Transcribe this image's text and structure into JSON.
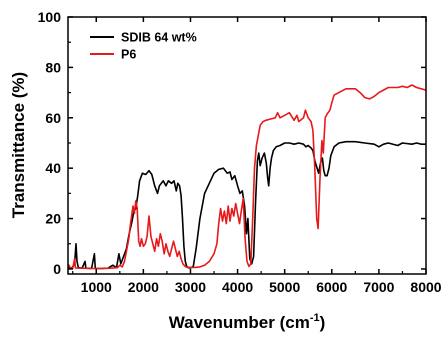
{
  "chart_data": {
    "type": "line",
    "title": "",
    "xlabel": "Wavenumber (cm",
    "xlabel_sup": "-1",
    "xlabel_close": ")",
    "ylabel": "Transmittance (%)",
    "xlim": [
      400,
      8000
    ],
    "ylim": [
      -2,
      100
    ],
    "xticks": [
      1000,
      2000,
      3000,
      4000,
      5000,
      6000,
      7000,
      8000
    ],
    "yticks": [
      0,
      20,
      40,
      60,
      80,
      100
    ],
    "grid": false,
    "legend_position": "top-left",
    "series": [
      {
        "name": "SDIB 64 wt%",
        "color": "#000000",
        "points": [
          [
            400,
            0.5
          ],
          [
            480,
            0.3
          ],
          [
            540,
            2
          ],
          [
            570,
            10
          ],
          [
            590,
            3
          ],
          [
            620,
            0.5
          ],
          [
            700,
            0.3
          ],
          [
            760,
            3
          ],
          [
            780,
            0.3
          ],
          [
            900,
            0.2
          ],
          [
            960,
            6
          ],
          [
            980,
            0.2
          ],
          [
            1100,
            0.2
          ],
          [
            1250,
            0.3
          ],
          [
            1350,
            1.5
          ],
          [
            1430,
            0.5
          ],
          [
            1480,
            6
          ],
          [
            1520,
            2
          ],
          [
            1580,
            5
          ],
          [
            1640,
            8
          ],
          [
            1700,
            14
          ],
          [
            1760,
            19
          ],
          [
            1800,
            23
          ],
          [
            1840,
            24
          ],
          [
            1880,
            29
          ],
          [
            1920,
            35
          ],
          [
            1980,
            38
          ],
          [
            2050,
            37.5
          ],
          [
            2120,
            39
          ],
          [
            2180,
            37.5
          ],
          [
            2240,
            33
          ],
          [
            2300,
            30
          ],
          [
            2340,
            33
          ],
          [
            2420,
            35
          ],
          [
            2480,
            33
          ],
          [
            2530,
            35
          ],
          [
            2600,
            34
          ],
          [
            2650,
            35
          ],
          [
            2700,
            31
          ],
          [
            2730,
            34
          ],
          [
            2770,
            33
          ],
          [
            2800,
            29
          ],
          [
            2830,
            20
          ],
          [
            2860,
            9
          ],
          [
            2890,
            3
          ],
          [
            2920,
            1
          ],
          [
            2950,
            0.5
          ],
          [
            3000,
            0.4
          ],
          [
            3060,
            1
          ],
          [
            3120,
            8
          ],
          [
            3200,
            20
          ],
          [
            3300,
            30
          ],
          [
            3400,
            34
          ],
          [
            3500,
            38
          ],
          [
            3600,
            39.5
          ],
          [
            3700,
            40
          ],
          [
            3780,
            38
          ],
          [
            3840,
            38.5
          ],
          [
            3880,
            35.5
          ],
          [
            3940,
            37
          ],
          [
            4000,
            33
          ],
          [
            4050,
            30
          ],
          [
            4100,
            31
          ],
          [
            4150,
            25
          ],
          [
            4190,
            14
          ],
          [
            4220,
            20
          ],
          [
            4260,
            4
          ],
          [
            4300,
            2
          ],
          [
            4340,
            5
          ],
          [
            4380,
            26
          ],
          [
            4420,
            43
          ],
          [
            4450,
            46
          ],
          [
            4480,
            41
          ],
          [
            4520,
            44
          ],
          [
            4570,
            46
          ],
          [
            4610,
            42
          ],
          [
            4640,
            36
          ],
          [
            4660,
            33
          ],
          [
            4690,
            40
          ],
          [
            4720,
            44
          ],
          [
            4760,
            47
          ],
          [
            4820,
            48.5
          ],
          [
            4900,
            49
          ],
          [
            5000,
            50
          ],
          [
            5100,
            50
          ],
          [
            5200,
            49.5
          ],
          [
            5300,
            50
          ],
          [
            5400,
            49.5
          ],
          [
            5450,
            48.5
          ],
          [
            5500,
            49
          ],
          [
            5560,
            48
          ],
          [
            5600,
            47
          ],
          [
            5640,
            43
          ],
          [
            5680,
            40.5
          ],
          [
            5720,
            38
          ],
          [
            5760,
            42
          ],
          [
            5800,
            44
          ],
          [
            5830,
            39
          ],
          [
            5860,
            37
          ],
          [
            5900,
            37
          ],
          [
            5940,
            40
          ],
          [
            5980,
            45
          ],
          [
            6050,
            48.5
          ],
          [
            6150,
            50
          ],
          [
            6300,
            50.5
          ],
          [
            6500,
            50.5
          ],
          [
            6700,
            50
          ],
          [
            6900,
            49.5
          ],
          [
            7000,
            48.5
          ],
          [
            7100,
            49.5
          ],
          [
            7200,
            50
          ],
          [
            7400,
            49
          ],
          [
            7500,
            50
          ],
          [
            7700,
            49.5
          ],
          [
            7800,
            50
          ],
          [
            7900,
            49.5
          ],
          [
            8000,
            49.5
          ]
        ]
      },
      {
        "name": "P6",
        "color": "#e8191a",
        "points": [
          [
            400,
            2
          ],
          [
            450,
            0.5
          ],
          [
            500,
            0.2
          ],
          [
            540,
            4
          ],
          [
            560,
            0.4
          ],
          [
            700,
            0.3
          ],
          [
            900,
            0.2
          ],
          [
            1100,
            0.2
          ],
          [
            1300,
            0.3
          ],
          [
            1450,
            0.5
          ],
          [
            1500,
            1.5
          ],
          [
            1550,
            0.8
          ],
          [
            1600,
            3
          ],
          [
            1650,
            8
          ],
          [
            1690,
            12
          ],
          [
            1720,
            17
          ],
          [
            1750,
            21
          ],
          [
            1780,
            25
          ],
          [
            1810,
            22
          ],
          [
            1840,
            27
          ],
          [
            1870,
            24
          ],
          [
            1900,
            11
          ],
          [
            1930,
            9
          ],
          [
            1960,
            12
          ],
          [
            2000,
            9
          ],
          [
            2040,
            10
          ],
          [
            2080,
            13
          ],
          [
            2120,
            21
          ],
          [
            2160,
            13
          ],
          [
            2200,
            10
          ],
          [
            2240,
            7
          ],
          [
            2280,
            12
          ],
          [
            2320,
            9
          ],
          [
            2360,
            14
          ],
          [
            2400,
            11
          ],
          [
            2440,
            6
          ],
          [
            2480,
            10
          ],
          [
            2520,
            7
          ],
          [
            2560,
            5
          ],
          [
            2600,
            8
          ],
          [
            2640,
            11
          ],
          [
            2680,
            8
          ],
          [
            2720,
            5
          ],
          [
            2760,
            7
          ],
          [
            2800,
            4
          ],
          [
            2840,
            2
          ],
          [
            2900,
            0.8
          ],
          [
            3000,
            0.6
          ],
          [
            3100,
            0.6
          ],
          [
            3200,
            0.8
          ],
          [
            3300,
            1.5
          ],
          [
            3400,
            3
          ],
          [
            3500,
            6
          ],
          [
            3560,
            10
          ],
          [
            3600,
            18
          ],
          [
            3640,
            24
          ],
          [
            3680,
            19
          ],
          [
            3720,
            23
          ],
          [
            3760,
            18
          ],
          [
            3800,
            25
          ],
          [
            3840,
            19
          ],
          [
            3880,
            24
          ],
          [
            3920,
            21
          ],
          [
            3960,
            26
          ],
          [
            4000,
            22
          ],
          [
            4040,
            18
          ],
          [
            4080,
            23
          ],
          [
            4120,
            28
          ],
          [
            4160,
            12
          ],
          [
            4200,
            3
          ],
          [
            4240,
            1
          ],
          [
            4280,
            2
          ],
          [
            4320,
            20
          ],
          [
            4360,
            40
          ],
          [
            4400,
            49
          ],
          [
            4440,
            53
          ],
          [
            4480,
            57
          ],
          [
            4540,
            58.5
          ],
          [
            4600,
            59
          ],
          [
            4700,
            59.5
          ],
          [
            4800,
            60
          ],
          [
            4850,
            62
          ],
          [
            4900,
            60
          ],
          [
            5000,
            61
          ],
          [
            5100,
            62
          ],
          [
            5200,
            59
          ],
          [
            5260,
            61
          ],
          [
            5300,
            58.5
          ],
          [
            5400,
            60
          ],
          [
            5440,
            63
          ],
          [
            5500,
            60
          ],
          [
            5560,
            58.5
          ],
          [
            5600,
            55
          ],
          [
            5640,
            40
          ],
          [
            5680,
            20
          ],
          [
            5710,
            16
          ],
          [
            5750,
            36
          ],
          [
            5790,
            51
          ],
          [
            5820,
            46
          ],
          [
            5860,
            60
          ],
          [
            5900,
            61.5
          ],
          [
            5960,
            63
          ],
          [
            6000,
            66
          ],
          [
            6050,
            69
          ],
          [
            6100,
            69.5
          ],
          [
            6200,
            70.5
          ],
          [
            6300,
            71.5
          ],
          [
            6500,
            71.5
          ],
          [
            6600,
            70
          ],
          [
            6700,
            68
          ],
          [
            6800,
            67.5
          ],
          [
            6900,
            68.5
          ],
          [
            7000,
            70
          ],
          [
            7200,
            72
          ],
          [
            7400,
            72
          ],
          [
            7500,
            72.5
          ],
          [
            7600,
            72
          ],
          [
            7700,
            73
          ],
          [
            7800,
            72
          ],
          [
            7900,
            71.5
          ],
          [
            8000,
            71
          ]
        ]
      }
    ]
  }
}
